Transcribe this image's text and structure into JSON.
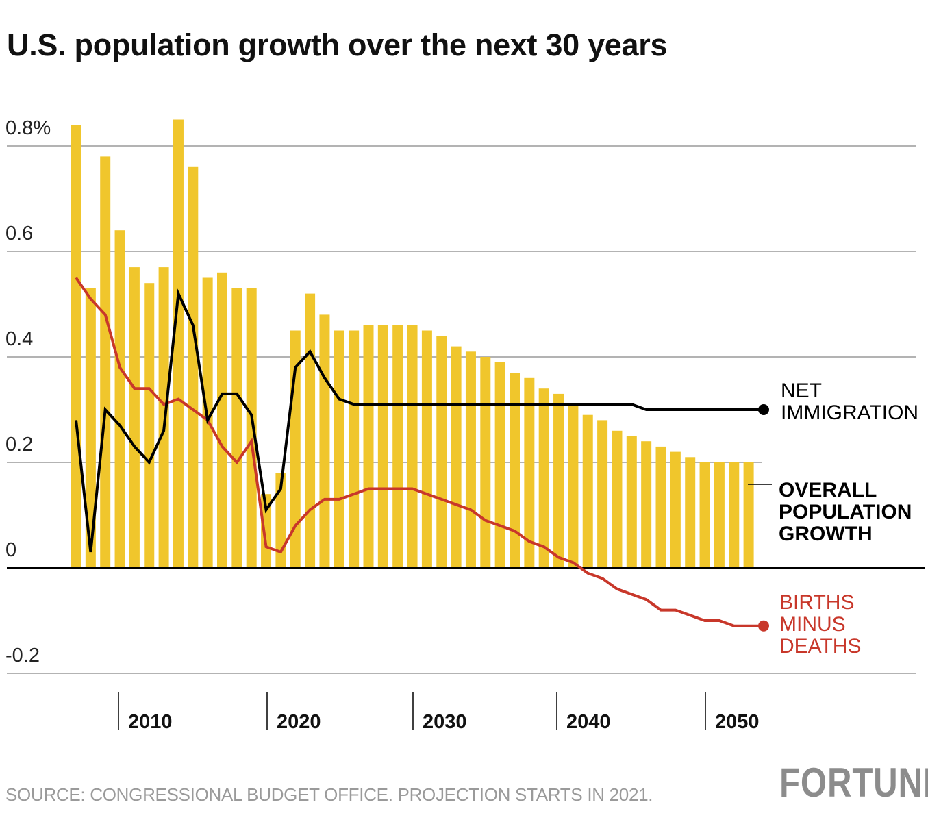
{
  "title": "U.S. population growth over the next 30 years",
  "source": "SOURCE: CONGRESSIONAL BUDGET OFFICE. PROJECTION STARTS IN 2021.",
  "logo": "FORTUNE",
  "colors": {
    "bars": "#F0C62C",
    "net_immigration": "#000000",
    "births_minus_deaths": "#C8372A",
    "grid": "#9a9a9a"
  },
  "chart_data": {
    "type": "bar",
    "title": "U.S. population growth over the next 30 years",
    "ylim": [
      -0.2,
      0.8
    ],
    "y_ticks": [
      {
        "v": 0.8,
        "label": "0.8%"
      },
      {
        "v": 0.6,
        "label": "0.6"
      },
      {
        "v": 0.4,
        "label": "0.4"
      },
      {
        "v": 0.2,
        "label": "0.2"
      },
      {
        "v": 0,
        "label": "0"
      },
      {
        "v": -0.2,
        "label": "-0.2"
      }
    ],
    "x_ticks": [
      "2010",
      "2020",
      "2030",
      "2040",
      "2050"
    ],
    "grid": true,
    "x": [
      2007,
      2008,
      2009,
      2010,
      2011,
      2012,
      2013,
      2014,
      2015,
      2016,
      2017,
      2018,
      2019,
      2020,
      2021,
      2022,
      2023,
      2024,
      2025,
      2026,
      2027,
      2028,
      2029,
      2030,
      2031,
      2032,
      2033,
      2034,
      2035,
      2036,
      2037,
      2038,
      2039,
      2040,
      2041,
      2042,
      2043,
      2044,
      2045,
      2046,
      2047,
      2048,
      2049,
      2050,
      2051,
      2052,
      2053
    ],
    "series": [
      {
        "name": "OVERALL POPULATION GROWTH",
        "kind": "bar",
        "label_lines": [
          "OVERALL",
          "POPULATION",
          "GROWTH"
        ],
        "values": [
          0.84,
          0.53,
          0.78,
          0.64,
          0.57,
          0.54,
          0.57,
          0.85,
          0.76,
          0.55,
          0.56,
          0.53,
          0.53,
          0.14,
          0.18,
          0.45,
          0.52,
          0.48,
          0.45,
          0.45,
          0.46,
          0.46,
          0.46,
          0.46,
          0.45,
          0.44,
          0.42,
          0.41,
          0.4,
          0.39,
          0.37,
          0.36,
          0.34,
          0.33,
          0.31,
          0.29,
          0.28,
          0.26,
          0.25,
          0.24,
          0.23,
          0.22,
          0.21,
          0.2,
          0.2,
          0.2,
          0.2
        ]
      },
      {
        "name": "NET IMMIGRATION",
        "kind": "line",
        "label_lines": [
          "NET",
          "IMMIGRATION"
        ],
        "values": [
          0.28,
          0.03,
          0.3,
          0.27,
          0.23,
          0.2,
          0.26,
          0.52,
          0.46,
          0.28,
          0.33,
          0.33,
          0.29,
          0.11,
          0.15,
          0.38,
          0.41,
          0.36,
          0.32,
          0.31,
          0.31,
          0.31,
          0.31,
          0.31,
          0.31,
          0.31,
          0.31,
          0.31,
          0.31,
          0.31,
          0.31,
          0.31,
          0.31,
          0.31,
          0.31,
          0.31,
          0.31,
          0.31,
          0.31,
          0.3,
          0.3,
          0.3,
          0.3,
          0.3,
          0.3,
          0.3,
          0.3
        ]
      },
      {
        "name": "BIRTHS MINUS DEATHS",
        "kind": "line",
        "label_lines": [
          "BIRTHS",
          "MINUS",
          "DEATHS"
        ],
        "values": [
          0.55,
          0.51,
          0.48,
          0.38,
          0.34,
          0.34,
          0.31,
          0.32,
          0.3,
          0.28,
          0.23,
          0.2,
          0.24,
          0.04,
          0.03,
          0.08,
          0.11,
          0.13,
          0.13,
          0.14,
          0.15,
          0.15,
          0.15,
          0.15,
          0.14,
          0.13,
          0.12,
          0.11,
          0.09,
          0.08,
          0.07,
          0.05,
          0.04,
          0.02,
          0.01,
          -0.01,
          -0.02,
          -0.04,
          -0.05,
          -0.06,
          -0.08,
          -0.08,
          -0.09,
          -0.1,
          -0.1,
          -0.11,
          -0.11
        ]
      }
    ]
  }
}
